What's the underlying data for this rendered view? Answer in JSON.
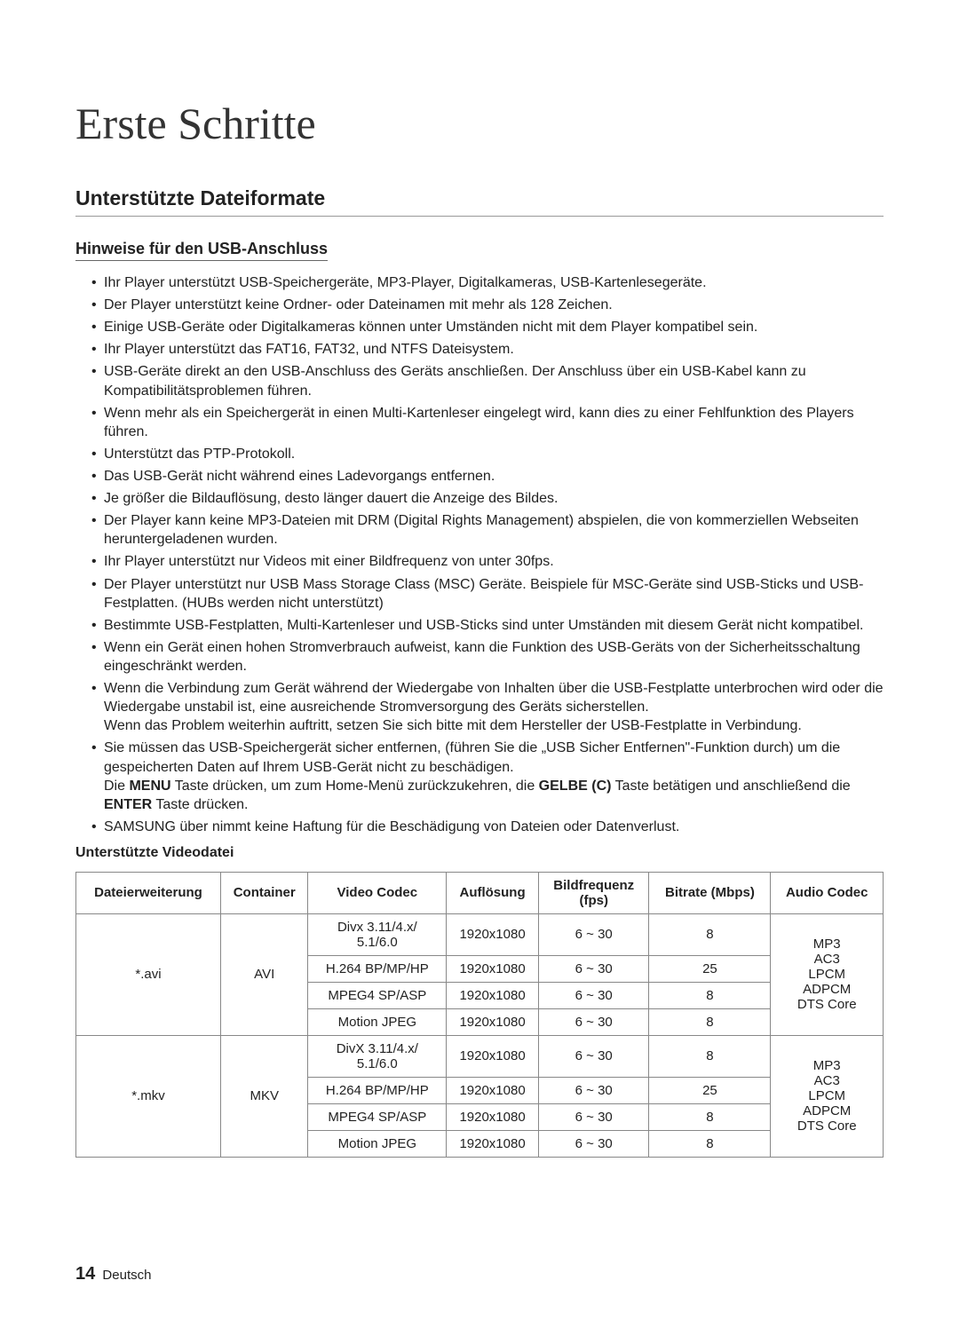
{
  "page": {
    "title": "Erste Schritte",
    "section": "Unterstützte Dateiformate",
    "subsection": "Hinweise für den USB-Anschluss",
    "table_title": "Unterstützte Videodatei",
    "footer_num": "14",
    "footer_lang": "Deutsch"
  },
  "bullets": [
    {
      "text": "Ihr Player unterstützt USB-Speichergeräte, MP3-Player, Digitalkameras, USB-Kartenlesegeräte."
    },
    {
      "text": "Der Player unterstützt keine Ordner- oder Dateinamen mit mehr als 128 Zeichen."
    },
    {
      "text": "Einige USB-Geräte oder Digitalkameras können unter Umständen nicht mit dem Player kompatibel sein."
    },
    {
      "text": "Ihr Player unterstützt das FAT16, FAT32, und NTFS Dateisystem."
    },
    {
      "text": "USB-Geräte direkt an den USB-Anschluss des Geräts anschließen. Der Anschluss über ein USB-Kabel kann zu Kompatibilitätsproblemen führen."
    },
    {
      "text": "Wenn mehr als ein Speichergerät in einen Multi-Kartenleser eingelegt wird, kann dies zu einer Fehlfunktion des Players führen."
    },
    {
      "text": "Unterstützt das PTP-Protokoll."
    },
    {
      "text": "Das USB-Gerät nicht während eines Ladevorgangs entfernen."
    },
    {
      "text": "Je größer die Bildauflösung, desto länger dauert die Anzeige des Bildes."
    },
    {
      "text": "Der Player kann keine MP3-Dateien mit DRM (Digital Rights Management) abspielen, die von kommerziellen Webseiten heruntergeladenen wurden."
    },
    {
      "text": "Ihr Player unterstützt nur Videos mit einer Bildfrequenz von unter 30fps."
    },
    {
      "text": "Der Player unterstützt nur USB Mass Storage Class (MSC) Geräte. Beispiele für MSC-Geräte sind USB-Sticks und USB-Festplatten. (HUBs werden nicht unterstützt)"
    },
    {
      "text": "Bestimmte USB-Festplatten, Multi-Kartenleser und USB-Sticks sind unter Umständen mit diesem Gerät nicht kompatibel."
    },
    {
      "text": "Wenn ein Gerät einen hohen Stromverbrauch aufweist, kann die Funktion des USB-Geräts von der Sicherheitsschaltung eingeschränkt werden."
    },
    {
      "text": "Wenn die Verbindung zum Gerät während der Wiedergabe von Inhalten über die USB-Festplatte unterbrochen wird oder die Wiedergabe unstabil ist, eine ausreichende Stromversorgung des Geräts sicherstellen.",
      "extra": "Wenn das Problem weiterhin auftritt, setzen Sie sich bitte mit dem Hersteller der USB-Festplatte in Verbindung."
    },
    {
      "html": "Sie müssen das USB-Speichergerät sicher entfernen, (führen Sie die „USB Sicher Entfernen\"-Funktion durch) um die gespeicherten Daten auf Ihrem USB-Gerät nicht zu beschädigen.",
      "extra_html": "Die <b>MENU</b> Taste drücken, um zum Home-Menü zurückzukehren, die <b>GELBE (C)</b> Taste betätigen und anschließend die <b>ENTER</b> Taste drücken."
    },
    {
      "text": "SAMSUNG über nimmt keine Haftung für die Beschädigung von Dateien oder Datenverlust."
    }
  ],
  "table": {
    "headers": [
      "Dateierweiterung",
      "Container",
      "Video Codec",
      "Auflösung",
      "Bildfrequenz (fps)",
      "Bitrate (Mbps)",
      "Audio Codec"
    ],
    "groups": [
      {
        "ext": "*.avi",
        "container": "AVI",
        "audio": [
          "MP3",
          "AC3",
          "LPCM",
          "ADPCM",
          "DTS Core"
        ],
        "rows": [
          {
            "codec": "Divx 3.11/4.x/ 5.1/6.0",
            "res": "1920x1080",
            "fps": "6 ~ 30",
            "bitrate": "8"
          },
          {
            "codec": "H.264 BP/MP/HP",
            "res": "1920x1080",
            "fps": "6 ~ 30",
            "bitrate": "25"
          },
          {
            "codec": "MPEG4 SP/ASP",
            "res": "1920x1080",
            "fps": "6 ~ 30",
            "bitrate": "8"
          },
          {
            "codec": "Motion JPEG",
            "res": "1920x1080",
            "fps": "6 ~ 30",
            "bitrate": "8"
          }
        ]
      },
      {
        "ext": "*.mkv",
        "container": "MKV",
        "audio": [
          "MP3",
          "AC3",
          "LPCM",
          "ADPCM",
          "DTS Core"
        ],
        "rows": [
          {
            "codec": "DivX 3.11/4.x/ 5.1/6.0",
            "res": "1920x1080",
            "fps": "6 ~ 30",
            "bitrate": "8"
          },
          {
            "codec": "H.264 BP/MP/HP",
            "res": "1920x1080",
            "fps": "6 ~ 30",
            "bitrate": "25"
          },
          {
            "codec": "MPEG4 SP/ASP",
            "res": "1920x1080",
            "fps": "6 ~ 30",
            "bitrate": "8"
          },
          {
            "codec": "Motion JPEG",
            "res": "1920x1080",
            "fps": "6 ~ 30",
            "bitrate": "8"
          }
        ]
      }
    ]
  }
}
